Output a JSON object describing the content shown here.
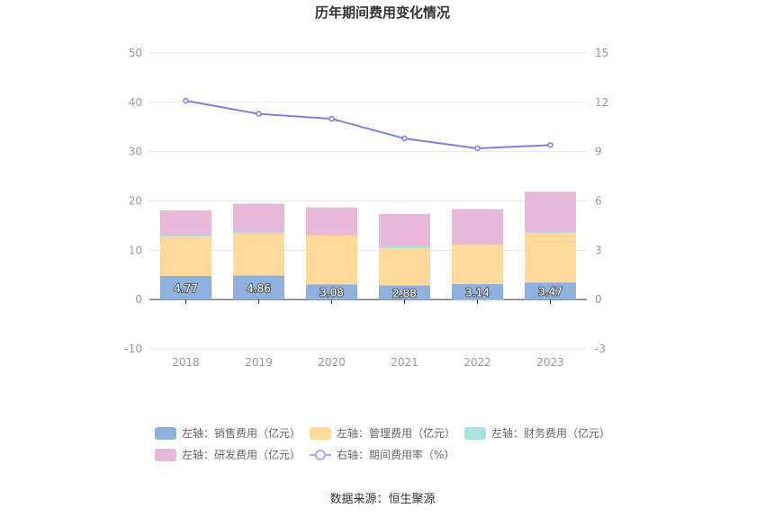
{
  "chart_data": {
    "type": "bar",
    "title": "历年期间费用变化情况",
    "categories": [
      "2018",
      "2019",
      "2020",
      "2021",
      "2022",
      "2023"
    ],
    "series": [
      {
        "name": "左轴：销售费用（亿元）",
        "axis": "left",
        "kind": "bar",
        "color": "#8eb0dc",
        "values": [
          4.77,
          4.86,
          3.08,
          2.88,
          3.14,
          3.47
        ],
        "labels": [
          "4.77",
          "4.86",
          "3.08",
          "2.88",
          "3.14",
          "3.47"
        ]
      },
      {
        "name": "左轴：管理费用（亿元）",
        "axis": "left",
        "kind": "bar",
        "color": "#ffd99a",
        "values": [
          8.1,
          8.5,
          9.9,
          7.5,
          8.0,
          10.1
        ]
      },
      {
        "name": "左轴：财务费用（亿元）",
        "axis": "left",
        "kind": "bar",
        "color": "#a8e0e0",
        "values": [
          0.1,
          0.3,
          0.2,
          0.4,
          -0.2,
          0.1
        ]
      },
      {
        "name": "左轴：研发费用（亿元）",
        "axis": "left",
        "kind": "bar",
        "color": "#e8b8d8",
        "values": [
          5.1,
          5.8,
          5.5,
          6.6,
          7.2,
          8.2
        ]
      },
      {
        "name": "右轴：期间费用率（%）",
        "axis": "right",
        "kind": "line",
        "color": "#7b7fe8",
        "values": [
          12.1,
          11.3,
          11.0,
          9.8,
          9.2,
          9.4
        ]
      }
    ],
    "left_axis": {
      "min": -10,
      "max": 50,
      "ticks": [
        "50",
        "40",
        "30",
        "20",
        "10",
        "0",
        "-10"
      ]
    },
    "right_axis": {
      "min": -3,
      "max": 15,
      "ticks": [
        "15",
        "12",
        "9",
        "6",
        "3",
        "0",
        "-3"
      ]
    },
    "legend_position": "bottom",
    "source": "数据来源：恒生聚源"
  }
}
